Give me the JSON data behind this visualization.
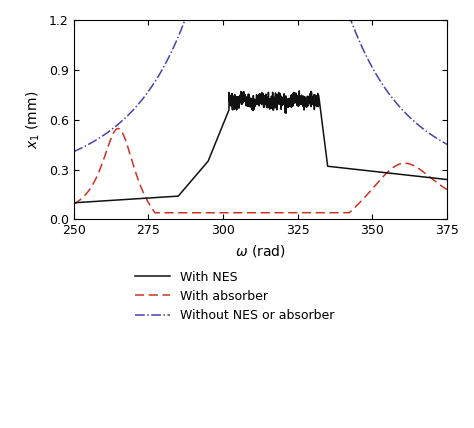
{
  "xlim": [
    250,
    375
  ],
  "ylim": [
    0.0,
    1.2
  ],
  "xticks": [
    250,
    275,
    300,
    325,
    350,
    375
  ],
  "yticks": [
    0.0,
    0.3,
    0.6,
    0.9,
    1.2
  ],
  "xlabel": "ω (rad)",
  "ylabel": "$x_1$ (mm)",
  "background_color": "#ffffff",
  "figsize": [
    4.74,
    4.28
  ],
  "dpi": 100,
  "blue_color": "#4444aa",
  "red_color": "#cc3322",
  "black_color": "#111111"
}
